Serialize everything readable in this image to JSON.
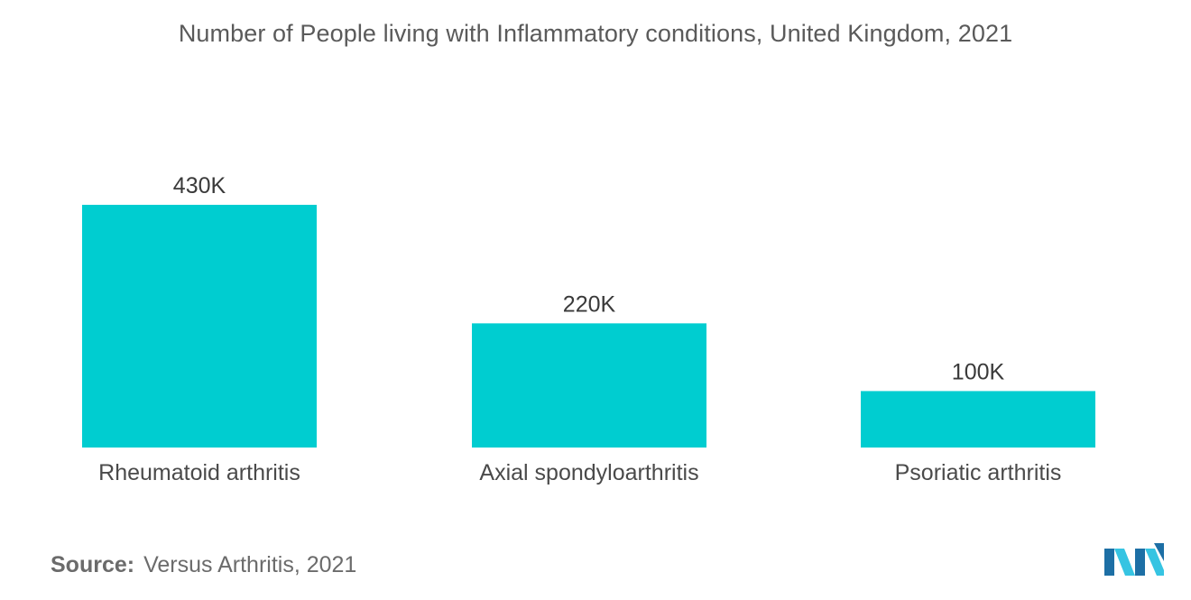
{
  "chart_data": {
    "type": "bar",
    "title": "Number of People living with Inflammatory conditions, United Kingdom, 2021",
    "categories": [
      "Rheumatoid arthritis",
      "Axial spondyloarthritis",
      "Psoriatic arthritis"
    ],
    "values": [
      430,
      220,
      100
    ],
    "value_labels": [
      "430K",
      "220K",
      "100K"
    ],
    "unit": "K",
    "xlabel": "",
    "ylabel": "",
    "ylim": [
      0,
      430
    ],
    "grid": false,
    "legend": "none",
    "colors": {
      "bar": "#00cdd0"
    }
  },
  "source": {
    "label": "Source:",
    "text": "Versus Arthritis, 2021"
  },
  "logo": {
    "icon": "mordor-logo-icon",
    "colors": [
      "#1d6fa5",
      "#36c4e2"
    ]
  }
}
